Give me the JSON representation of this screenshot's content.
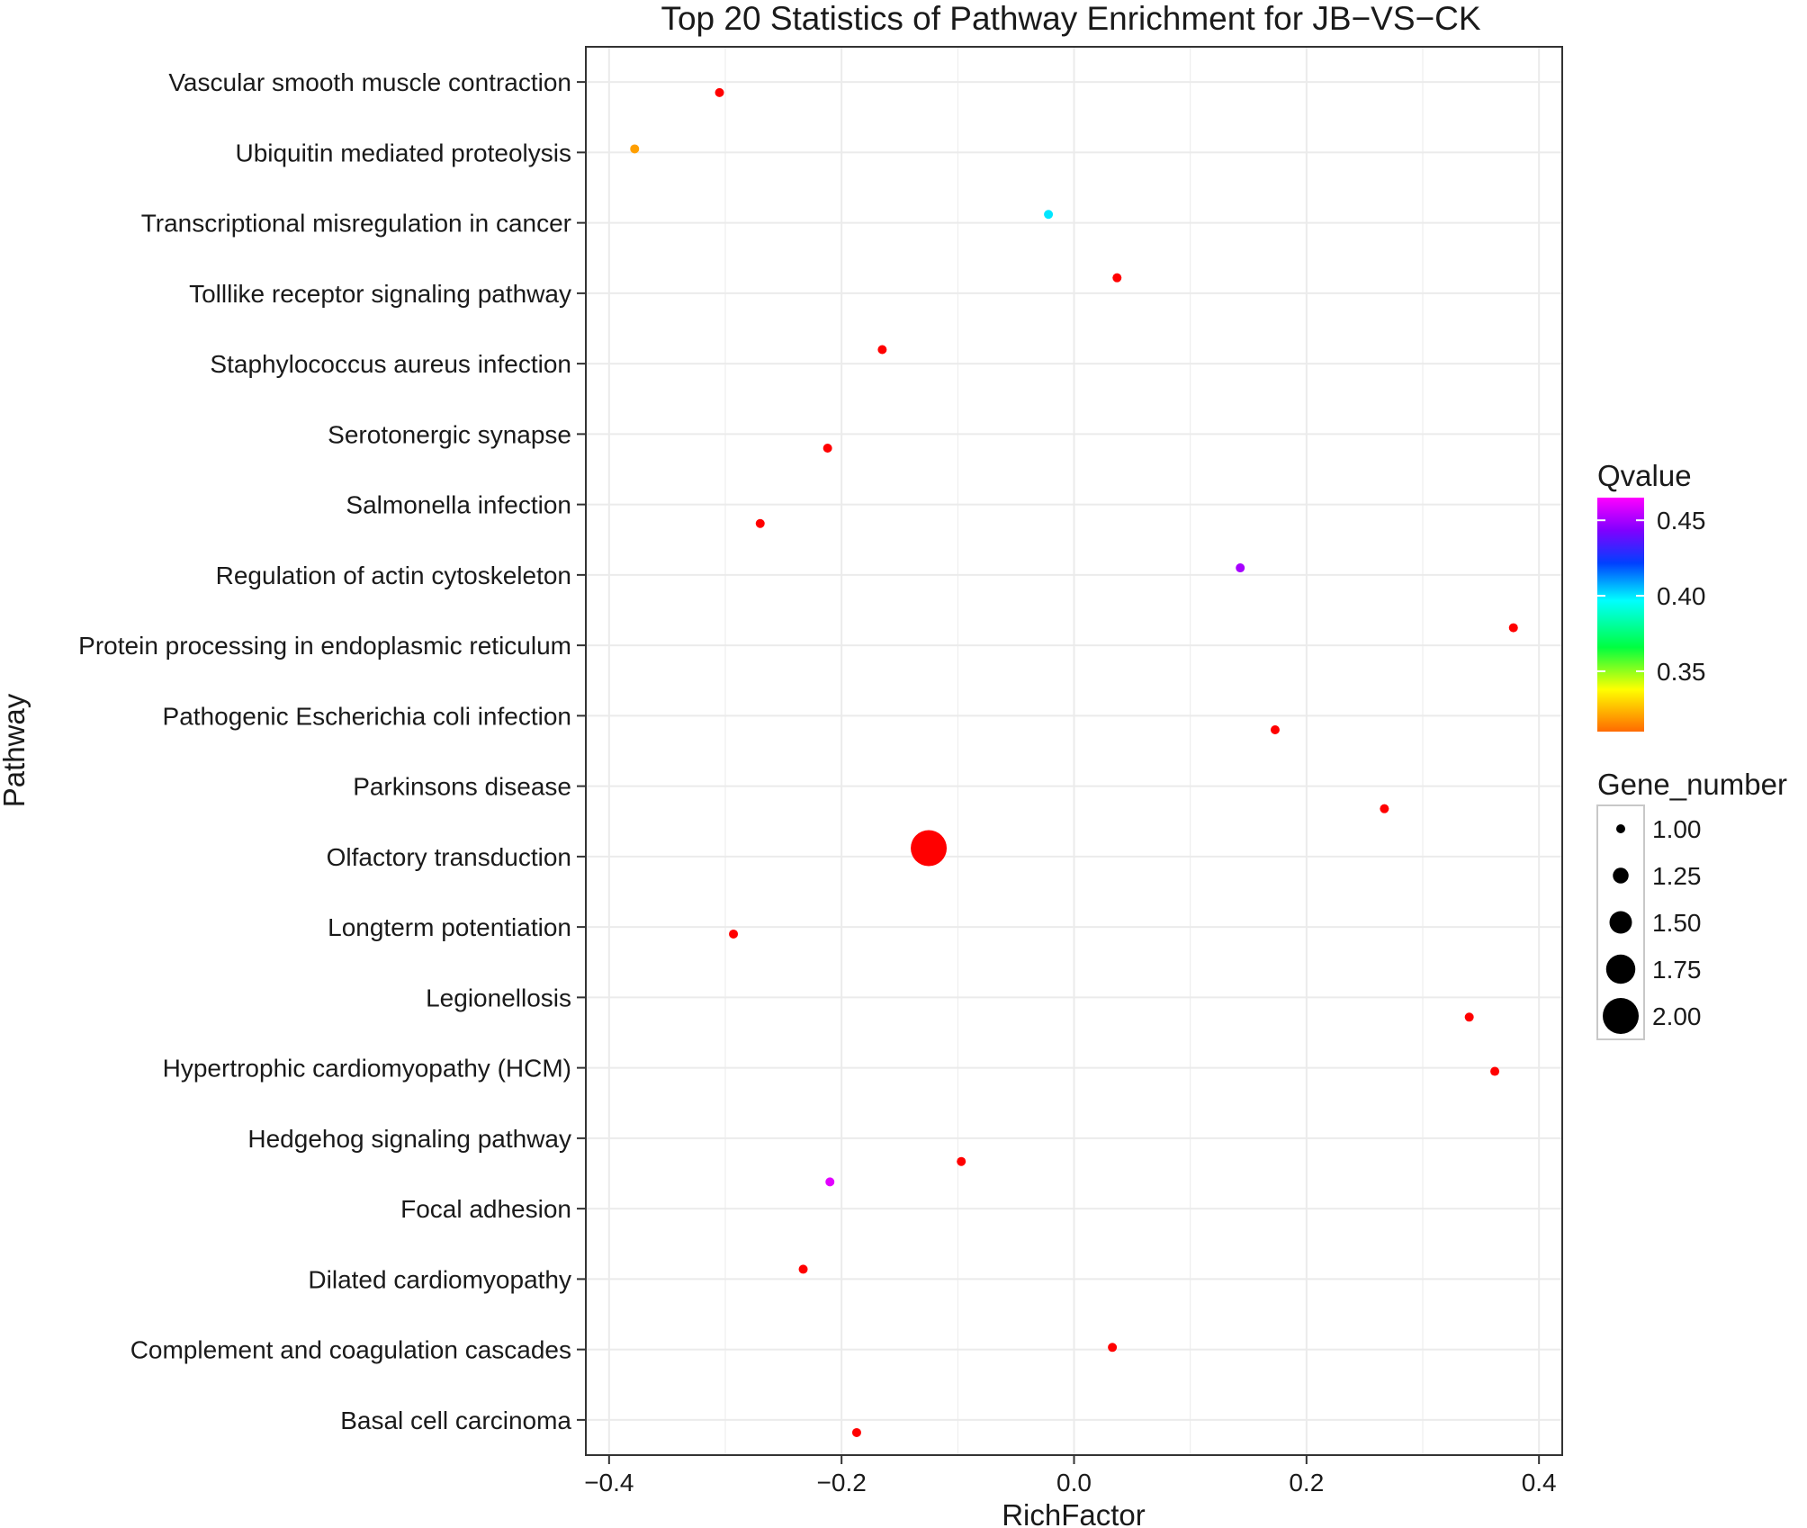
{
  "chart_data": {
    "type": "scatter",
    "title": "Top 20 Statistics of Pathway Enrichment for JB−VS−CK",
    "xlabel": "RichFactor",
    "ylabel": "Pathway",
    "xlim": [
      -0.42,
      0.42
    ],
    "x_ticks": [
      -0.4,
      -0.2,
      0.0,
      0.2,
      0.4
    ],
    "x_tick_labels": [
      "−0.4",
      "−0.2",
      "0.0",
      "0.2",
      "0.4"
    ],
    "grid": true,
    "categories": [
      "Vascular smooth muscle contraction",
      "Ubiquitin mediated proteolysis",
      "Transcriptional misregulation in cancer",
      "Tolllike receptor signaling pathway",
      "Staphylococcus aureus infection",
      "Serotonergic synapse",
      "Salmonella infection",
      "Regulation of actin cytoskeleton",
      "Protein processing in endoplasmic reticulum",
      "Pathogenic Escherichia coli infection",
      "Parkinsons disease",
      "Olfactory transduction",
      "Longterm potentiation",
      "Legionellosis",
      "Hypertrophic cardiomyopathy (HCM)",
      "Hedgehog signaling pathway",
      "Focal adhesion",
      "Dilated cardiomyopathy",
      "Complement and coagulation cascades",
      "Basal cell carcinoma"
    ],
    "points": [
      {
        "category": "Vascular smooth muscle contraction",
        "x": -0.305,
        "offset": 0.15,
        "qvalue": 0.31,
        "gene_number": 1
      },
      {
        "category": "Ubiquitin mediated proteolysis",
        "x": -0.378,
        "offset": -0.05,
        "qvalue": 0.32,
        "gene_number": 1
      },
      {
        "category": "Transcriptional misregulation in cancer",
        "x": -0.022,
        "offset": -0.12,
        "qvalue": 0.4,
        "gene_number": 1
      },
      {
        "category": "Tolllike receptor signaling pathway",
        "x": 0.037,
        "offset": -0.22,
        "qvalue": 0.31,
        "gene_number": 1
      },
      {
        "category": "Staphylococcus aureus infection",
        "x": -0.165,
        "offset": -0.2,
        "qvalue": 0.31,
        "gene_number": 1
      },
      {
        "category": "Serotonergic synapse",
        "x": -0.212,
        "offset": 0.2,
        "qvalue": 0.31,
        "gene_number": 1
      },
      {
        "category": "Salmonella infection",
        "x": -0.27,
        "offset": 0.27,
        "qvalue": 0.31,
        "gene_number": 1
      },
      {
        "category": "Regulation of actin cytoskeleton",
        "x": 0.143,
        "offset": -0.1,
        "qvalue": 0.45,
        "gene_number": 1
      },
      {
        "category": "Protein processing in endoplasmic reticulum",
        "x": 0.378,
        "offset": -0.25,
        "qvalue": 0.31,
        "gene_number": 1
      },
      {
        "category": "Pathogenic Escherichia coli infection",
        "x": 0.173,
        "offset": 0.2,
        "qvalue": 0.31,
        "gene_number": 1
      },
      {
        "category": "Parkinsons disease",
        "x": 0.267,
        "offset": 0.32,
        "qvalue": 0.31,
        "gene_number": 1
      },
      {
        "category": "Olfactory transduction",
        "x": -0.125,
        "offset": -0.12,
        "qvalue": 0.31,
        "gene_number": 2
      },
      {
        "category": "Longterm potentiation",
        "x": -0.293,
        "offset": 0.1,
        "qvalue": 0.31,
        "gene_number": 1
      },
      {
        "category": "Legionellosis",
        "x": 0.34,
        "offset": 0.28,
        "qvalue": 0.31,
        "gene_number": 1
      },
      {
        "category": "Hypertrophic cardiomyopathy (HCM)",
        "x": 0.362,
        "offset": 0.05,
        "qvalue": 0.31,
        "gene_number": 1
      },
      {
        "category": "Hedgehog signaling pathway",
        "x": -0.097,
        "offset": 0.33,
        "qvalue": 0.31,
        "gene_number": 1
      },
      {
        "category": "Focal adhesion",
        "x": -0.21,
        "offset": -0.38,
        "qvalue": 0.46,
        "gene_number": 1
      },
      {
        "category": "Dilated cardiomyopathy",
        "x": -0.233,
        "offset": -0.14,
        "qvalue": 0.31,
        "gene_number": 1
      },
      {
        "category": "Complement and coagulation cascades",
        "x": 0.033,
        "offset": -0.03,
        "qvalue": 0.31,
        "gene_number": 1
      },
      {
        "category": "Basal cell carcinoma",
        "x": -0.187,
        "offset": 0.18,
        "qvalue": 0.31,
        "gene_number": 1
      }
    ],
    "color_legend": {
      "title": "Qvalue",
      "range": [
        0.31,
        0.465
      ],
      "ticks": [
        0.35,
        0.4,
        0.45
      ],
      "tick_labels": [
        "0.35",
        "0.40",
        "0.45"
      ],
      "colors_low_to_high": [
        "#ff6a00",
        "#ffff00",
        "#00ff40",
        "#00ffff",
        "#0040ff",
        "#8000ff",
        "#ff00ff"
      ]
    },
    "size_legend": {
      "title": "Gene_number",
      "values": [
        1.0,
        1.25,
        1.5,
        1.75,
        2.0
      ],
      "labels": [
        "1.00",
        "1.25",
        "1.50",
        "1.75",
        "2.00"
      ]
    },
    "colors": {
      "panel_border": "#333333",
      "grid": "#ebebeb",
      "point_default": "#ff0000",
      "size_key": "#000000"
    }
  }
}
